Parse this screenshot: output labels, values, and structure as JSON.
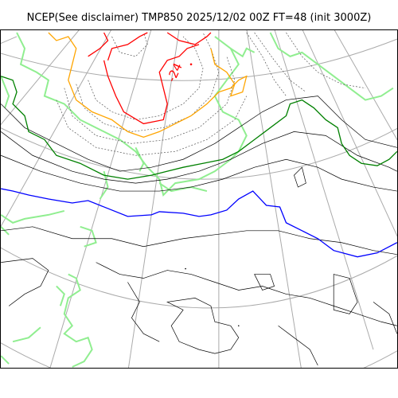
{
  "title": "NCEP(See disclaimer) TMP850 2025/12/02 00Z FT=48 (init 3000Z)",
  "map": {
    "variable": "TMP850",
    "contour_labels": [
      "-24"
    ],
    "colors": {
      "coastline": "#90ee90",
      "isotherm_minus24": "#ff0000",
      "isotherm_minus18": "#ffa500",
      "isotherm_minus6": "#008000",
      "isotherm_0": "#0000ff",
      "isotherm_generic": "#000000",
      "isotherm_dashed": "#555555",
      "graticule": "#aaaaaa"
    }
  }
}
